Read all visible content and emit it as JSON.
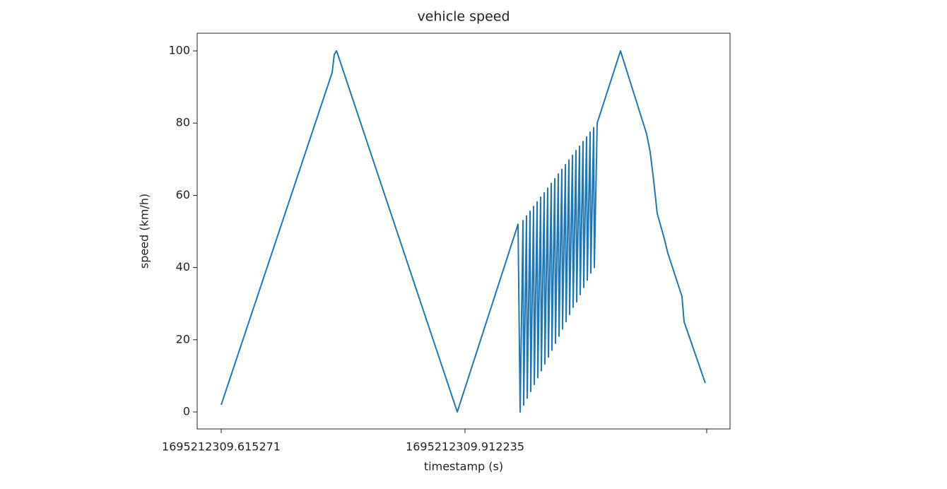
{
  "chart_data": {
    "type": "line",
    "title": "vehicle speed",
    "x_label": "timestamp (s)",
    "y_label": "speed (km/h)",
    "x": [
      1695212309.615271,
      1695212309.7504,
      1695212309.753,
      1695212309.7556,
      1695212309.7573,
      1695212309.9028,
      1695212309.9768,
      1695212309.97936,
      1695212309.98281,
      1695212309.98367,
      1695212309.98711,
      1695212309.98797,
      1695212309.99141,
      1695212309.99227,
      1695212309.99572,
      1695212309.99657,
      1695212310.00002,
      1695212310.00088,
      1695212310.00432,
      1695212310.00518,
      1695212310.00863,
      1695212310.00948,
      1695212310.01293,
      1695212310.01379,
      1695212310.01723,
      1695212310.01809,
      1695212310.02153,
      1695212310.02239,
      1695212310.02584,
      1695212310.02669,
      1695212310.03014,
      1695212310.031,
      1695212310.03444,
      1695212310.0353,
      1695212310.03875,
      1695212310.0396,
      1695212310.04305,
      1695212310.04391,
      1695212310.04735,
      1695212310.04821,
      1695212310.05165,
      1695212310.05251,
      1695212310.05596,
      1695212310.05681,
      1695212310.06026,
      1695212310.06112,
      1695212310.06456,
      1695212310.06542,
      1695212310.06887,
      1695212310.06972,
      1695212310.07317,
      1695212310.10157,
      1695212310.13341,
      1695212310.13771,
      1695212310.14202,
      1695212310.14632,
      1695212310.15493,
      1695212310.15923,
      1695212310.17645,
      1695212310.17903,
      1695212310.20485
    ],
    "series": [
      {
        "name": "speed",
        "color": "#1f77b4",
        "values": [
          2,
          94,
          99,
          100,
          99,
          0,
          52,
          0,
          53,
          1.9,
          54.3,
          3.8,
          55.6,
          5.7,
          56.9,
          7.6,
          58.2,
          9.5,
          59.5,
          11.4,
          60.7,
          13.3,
          62,
          15.2,
          63.3,
          17.1,
          64.6,
          19,
          65.9,
          21,
          67.2,
          23,
          68.5,
          25,
          69.8,
          27,
          71.1,
          29,
          72.4,
          30.5,
          73.6,
          32.5,
          74.9,
          34.5,
          76.2,
          36.5,
          77.5,
          38.5,
          78.8,
          40,
          80,
          100,
          77,
          72,
          64,
          55,
          48,
          44,
          32,
          25,
          8
        ]
      }
    ],
    "xlim": [
      1695212309.586,
      1695212310.235
    ],
    "xticks": [
      {
        "value": 1695212309.615271,
        "label": "1695212309.615271"
      },
      {
        "value": 1695212309.912235,
        "label": "1695212309.912235"
      },
      {
        "value": 1695212310.20657,
        "label": null
      }
    ],
    "ylim": [
      -4.7,
      104.9
    ],
    "yticks": [
      0,
      20,
      40,
      60,
      80,
      100
    ],
    "grid": false
  }
}
